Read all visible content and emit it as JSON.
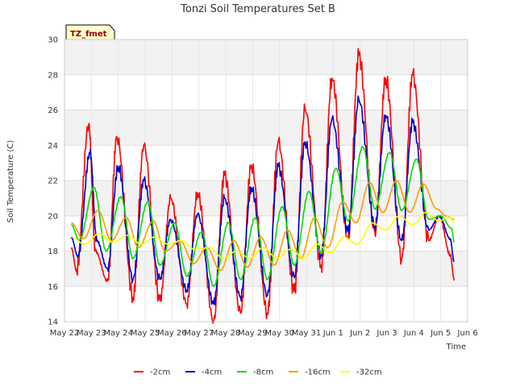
{
  "chart_data": {
    "type": "line",
    "title": "Tonzi Soil Temperatures Set B",
    "xlabel": "Time",
    "ylabel": "Soil Temperature (C)",
    "ylim": [
      14,
      30
    ],
    "yticks": [
      14,
      16,
      18,
      20,
      22,
      24,
      26,
      28,
      30
    ],
    "xlim": [
      0,
      15
    ],
    "xticks": [
      {
        "pos": 0,
        "label": "May 22"
      },
      {
        "pos": 1,
        "label": "May 23"
      },
      {
        "pos": 2,
        "label": "May 24"
      },
      {
        "pos": 3,
        "label": "May 25"
      },
      {
        "pos": 4,
        "label": "May 26"
      },
      {
        "pos": 5,
        "label": "May 27"
      },
      {
        "pos": 6,
        "label": "May 28"
      },
      {
        "pos": 7,
        "label": "May 29"
      },
      {
        "pos": 8,
        "label": "May 30"
      },
      {
        "pos": 9,
        "label": "May 31"
      },
      {
        "pos": 10,
        "label": "Jun 1"
      },
      {
        "pos": 11,
        "label": "Jun 2"
      },
      {
        "pos": 12,
        "label": "Jun 3"
      },
      {
        "pos": 13,
        "label": "Jun 4"
      },
      {
        "pos": 14,
        "label": "Jun 5"
      },
      {
        "pos": 15,
        "label": "Jun 6"
      }
    ],
    "grid": true,
    "legend_position": "bottom",
    "badge": "TZ_fmet",
    "series": [
      {
        "name": "-2cm",
        "color": "#ff0000",
        "x": [
          0.25,
          0.45,
          0.9,
          1.15,
          1.6,
          1.95,
          2.55,
          2.95,
          3.55,
          3.95,
          4.55,
          4.95,
          5.55,
          5.95,
          6.55,
          6.95,
          7.55,
          7.95,
          8.55,
          8.95,
          9.55,
          9.95,
          10.55,
          10.95,
          11.55,
          11.95,
          12.55,
          12.95,
          13.55,
          13.95,
          14.35,
          14.5
        ],
        "y": [
          18.2,
          16.9,
          25.2,
          18.0,
          16.3,
          24.5,
          15.4,
          24.0,
          15.2,
          21.0,
          15.0,
          21.3,
          14.0,
          22.3,
          14.5,
          22.9,
          14.5,
          24.2,
          15.7,
          26.1,
          17.2,
          27.8,
          18.7,
          29.1,
          19.0,
          27.8,
          17.6,
          28.0,
          18.6,
          20.0,
          17.8,
          16.4
        ]
      },
      {
        "name": "-4cm",
        "color": "#0000cc",
        "x": [
          0.25,
          0.5,
          0.95,
          1.2,
          1.6,
          2.0,
          2.55,
          2.95,
          3.55,
          3.95,
          4.55,
          4.95,
          5.55,
          5.95,
          6.55,
          6.95,
          7.55,
          7.95,
          8.55,
          8.95,
          9.55,
          9.95,
          10.55,
          10.95,
          11.55,
          11.95,
          12.55,
          12.95,
          13.55,
          13.95,
          14.35,
          14.5
        ],
        "y": [
          18.8,
          17.7,
          23.6,
          18.6,
          17.0,
          22.8,
          16.4,
          22.0,
          16.4,
          19.8,
          15.8,
          20.1,
          15.0,
          21.0,
          15.4,
          21.6,
          15.5,
          22.8,
          16.5,
          24.2,
          17.8,
          25.5,
          19.1,
          26.6,
          19.4,
          25.7,
          18.6,
          25.3,
          19.2,
          20.0,
          18.7,
          17.4
        ]
      },
      {
        "name": "-8cm",
        "color": "#00dd00",
        "x": [
          0.25,
          0.55,
          1.1,
          1.55,
          2.1,
          2.55,
          3.1,
          3.55,
          4.1,
          4.55,
          5.1,
          5.55,
          6.1,
          6.55,
          7.1,
          7.55,
          8.1,
          8.55,
          9.1,
          9.55,
          10.1,
          10.55,
          11.1,
          11.55,
          12.1,
          12.55,
          13.1,
          13.55,
          14.0,
          14.4,
          14.5
        ],
        "y": [
          19.5,
          18.6,
          21.6,
          18.0,
          21.1,
          17.6,
          20.8,
          17.2,
          19.6,
          16.6,
          19.1,
          16.0,
          19.6,
          16.4,
          19.9,
          16.4,
          20.5,
          17.2,
          21.4,
          17.9,
          22.7,
          19.7,
          23.9,
          20.4,
          23.6,
          20.3,
          23.2,
          19.8,
          20.0,
          19.3,
          18.5
        ]
      },
      {
        "name": "-16cm",
        "color": "#ff9900",
        "x": [
          0.25,
          0.7,
          1.25,
          1.75,
          2.3,
          2.75,
          3.3,
          3.75,
          4.3,
          4.8,
          5.3,
          5.8,
          6.3,
          6.8,
          7.3,
          7.8,
          8.3,
          8.8,
          9.3,
          9.8,
          10.35,
          10.85,
          11.35,
          11.85,
          12.35,
          12.85,
          13.35,
          13.85,
          14.2,
          14.5
        ],
        "y": [
          19.6,
          18.7,
          20.3,
          18.6,
          19.9,
          18.2,
          19.7,
          18.0,
          18.6,
          17.3,
          18.2,
          16.9,
          18.6,
          17.1,
          18.8,
          17.2,
          19.2,
          17.6,
          19.9,
          18.2,
          20.8,
          19.6,
          21.9,
          20.2,
          22.0,
          20.2,
          21.8,
          20.4,
          20.0,
          19.8
        ]
      },
      {
        "name": "-32cm",
        "color": "#ffff00",
        "x": [
          0.25,
          0.75,
          1.3,
          1.8,
          2.35,
          2.85,
          3.35,
          3.85,
          4.35,
          4.85,
          5.4,
          5.9,
          6.4,
          6.9,
          7.4,
          7.9,
          8.4,
          8.9,
          9.4,
          9.9,
          10.4,
          10.9,
          11.45,
          11.95,
          12.45,
          12.95,
          13.45,
          13.95,
          14.3,
          14.5
        ],
        "y": [
          18.8,
          18.4,
          19.0,
          18.5,
          18.9,
          18.4,
          18.8,
          18.4,
          18.6,
          18.1,
          18.2,
          17.6,
          18.0,
          17.6,
          18.2,
          17.6,
          18.1,
          17.6,
          18.4,
          17.9,
          18.8,
          18.4,
          19.6,
          19.2,
          20.0,
          19.5,
          20.2,
          19.7,
          20.0,
          19.6
        ]
      }
    ]
  }
}
